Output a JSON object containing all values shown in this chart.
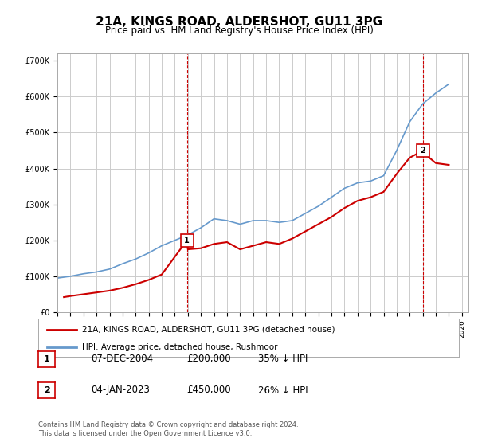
{
  "title": "21A, KINGS ROAD, ALDERSHOT, GU11 3PG",
  "subtitle": "Price paid vs. HM Land Registry's House Price Index (HPI)",
  "xlabel": "",
  "ylabel": "",
  "ylim": [
    0,
    720000
  ],
  "xlim_start": 1995.0,
  "xlim_end": 2026.5,
  "background_color": "#ffffff",
  "grid_color": "#cccccc",
  "sale1_year": 2004.93,
  "sale1_price": 200000,
  "sale1_label": "1",
  "sale2_year": 2023.02,
  "sale2_price": 450000,
  "sale2_label": "2",
  "legend_line1": "21A, KINGS ROAD, ALDERSHOT, GU11 3PG (detached house)",
  "legend_line2": "HPI: Average price, detached house, Rushmoor",
  "table_row1": [
    "1",
    "07-DEC-2004",
    "£200,000",
    "35% ↓ HPI"
  ],
  "table_row2": [
    "2",
    "04-JAN-2023",
    "£450,000",
    "26% ↓ HPI"
  ],
  "footer": "Contains HM Land Registry data © Crown copyright and database right 2024.\nThis data is licensed under the Open Government Licence v3.0.",
  "sale_color": "#cc0000",
  "hpi_color": "#6699cc",
  "hpi_years": [
    1995,
    1996,
    1997,
    1998,
    1999,
    2000,
    2001,
    2002,
    2003,
    2004,
    2005,
    2006,
    2007,
    2008,
    2009,
    2010,
    2011,
    2012,
    2013,
    2014,
    2015,
    2016,
    2017,
    2018,
    2019,
    2020,
    2021,
    2022,
    2023,
    2024,
    2025
  ],
  "hpi_values": [
    95000,
    100000,
    107000,
    112000,
    120000,
    135000,
    148000,
    165000,
    185000,
    200000,
    215000,
    235000,
    260000,
    255000,
    245000,
    255000,
    255000,
    250000,
    255000,
    275000,
    295000,
    320000,
    345000,
    360000,
    365000,
    380000,
    450000,
    530000,
    580000,
    610000,
    635000
  ],
  "sale_years": [
    1995.5,
    1996,
    1997,
    1998,
    1999,
    2000,
    2001,
    2002,
    2003,
    2004.93,
    2005,
    2006,
    2007,
    2008,
    2009,
    2010,
    2011,
    2012,
    2013,
    2014,
    2015,
    2016,
    2017,
    2018,
    2019,
    2020,
    2021,
    2022,
    2023.02,
    2023.5,
    2024,
    2025
  ],
  "sale_values": [
    42000,
    45000,
    50000,
    55000,
    60000,
    68000,
    78000,
    90000,
    105000,
    200000,
    175000,
    178000,
    190000,
    195000,
    175000,
    185000,
    195000,
    190000,
    205000,
    225000,
    245000,
    265000,
    290000,
    310000,
    320000,
    335000,
    385000,
    430000,
    450000,
    430000,
    415000,
    410000
  ]
}
